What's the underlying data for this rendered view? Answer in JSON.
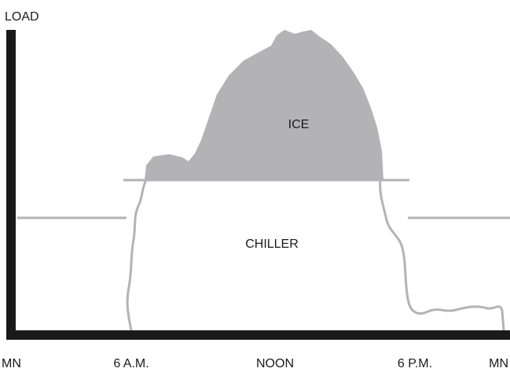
{
  "y_axis_label": "LOAD",
  "x_labels": [
    "MN",
    "6 A.M.",
    "NOON",
    "6 P.M.",
    "MN"
  ],
  "regions": {
    "ice": "ICE",
    "chiller": "CHILLER"
  }
}
